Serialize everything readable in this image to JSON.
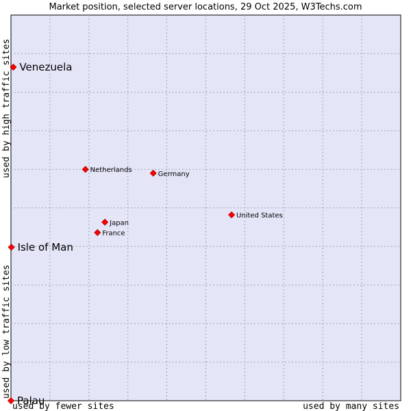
{
  "chart_data": {
    "type": "scatter",
    "title": "Market position, selected server locations, 29 Oct 2025, W3Techs.com",
    "xlabel_left": "used by fewer sites",
    "xlabel_right": "used by many sites",
    "ylabel_bottom": "used by low traffic sites",
    "ylabel_top": "used by high traffic sites",
    "xlim": [
      0,
      100
    ],
    "ylim": [
      0,
      100
    ],
    "grid": true,
    "point_color": "#ff0000",
    "points": [
      {
        "label": "Venezuela",
        "x": 0.6,
        "y": 86.5,
        "size": "large"
      },
      {
        "label": "Netherlands",
        "x": 19.1,
        "y": 60.0,
        "size": "small"
      },
      {
        "label": "Germany",
        "x": 36.5,
        "y": 59.0,
        "size": "small"
      },
      {
        "label": "United States",
        "x": 56.6,
        "y": 48.2,
        "size": "small"
      },
      {
        "label": "Japan",
        "x": 24.1,
        "y": 46.3,
        "size": "small"
      },
      {
        "label": "France",
        "x": 22.2,
        "y": 43.6,
        "size": "small"
      },
      {
        "label": "Isle of Man",
        "x": 0.1,
        "y": 39.8,
        "size": "large"
      },
      {
        "label": "Palau",
        "x": 0.0,
        "y": 0.0,
        "size": "large"
      }
    ]
  }
}
